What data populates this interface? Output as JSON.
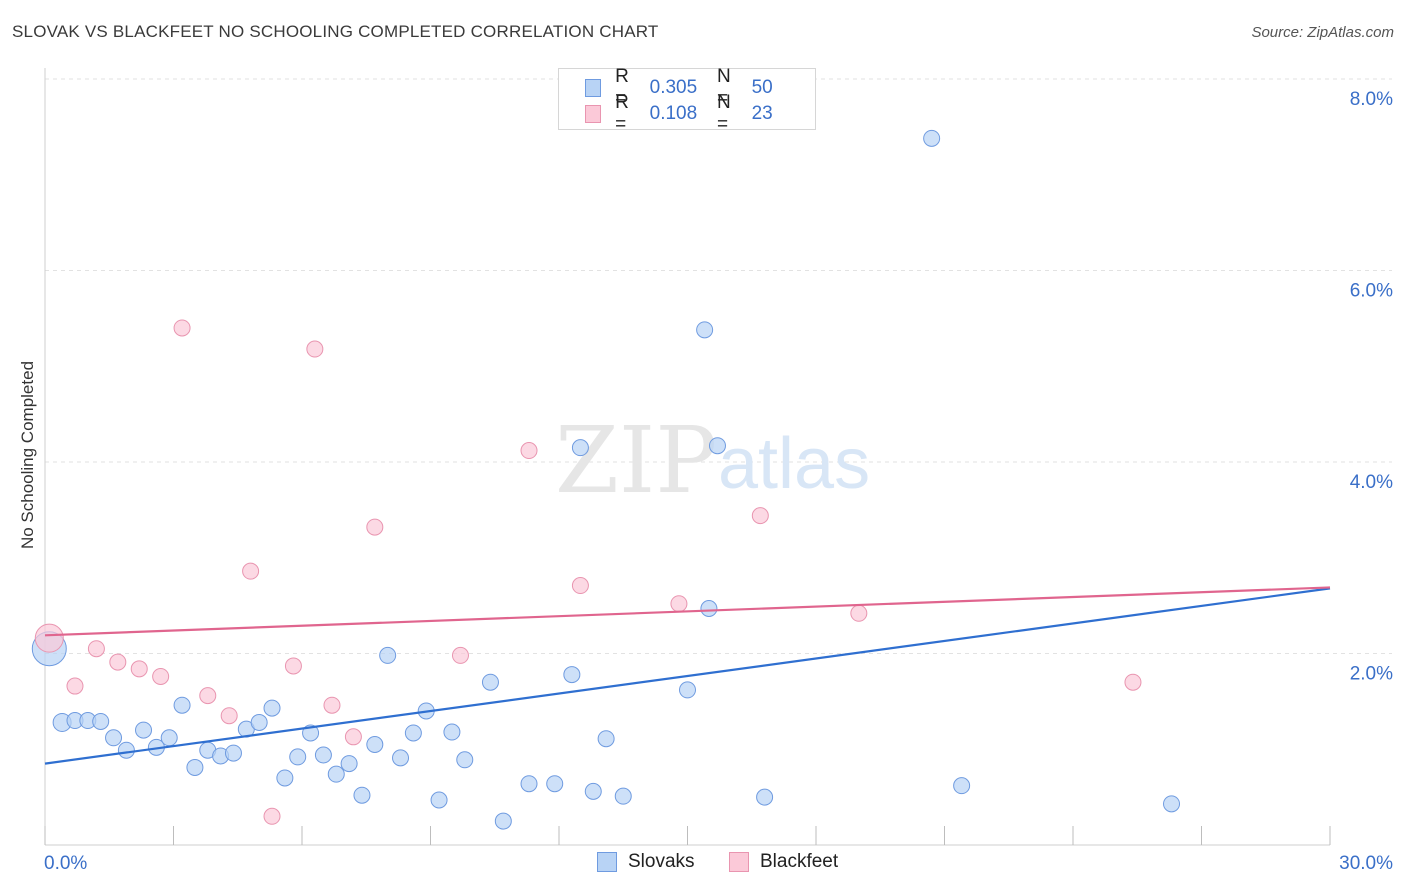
{
  "title": "SLOVAK VS BLACKFEET NO SCHOOLING COMPLETED CORRELATION CHART",
  "source": "Source: ZipAtlas.com",
  "watermark": {
    "zip": "ZIP",
    "atlas": "atlas"
  },
  "legend_top": [
    {
      "r_label": "R =",
      "r_value": "0.305",
      "n_label": "N =",
      "n_value": "50",
      "color": "#b8d3f5",
      "border": "#6f9be0"
    },
    {
      "r_label": "R =",
      "r_value": "0.108",
      "n_label": "N =",
      "n_value": "23",
      "color": "#fbc9d8",
      "border": "#e995b0"
    }
  ],
  "legend_bottom": [
    {
      "label": "Slovaks",
      "color": "#b8d3f5",
      "border": "#6f9be0"
    },
    {
      "label": "Blackfeet",
      "color": "#fbc9d8",
      "border": "#e995b0"
    }
  ],
  "chart_data": {
    "type": "scatter",
    "title": "SLOVAK VS BLACKFEET NO SCHOOLING COMPLETED CORRELATION CHART",
    "xlabel": "",
    "ylabel": "No Schooling Completed",
    "xlim": [
      0,
      30
    ],
    "ylim": [
      0,
      8
    ],
    "x_tick_labels": [
      "0.0%",
      "30.0%"
    ],
    "y_ticks": [
      2,
      4,
      6,
      8
    ],
    "y_tick_labels": [
      "2.0%",
      "4.0%",
      "6.0%",
      "8.0%"
    ],
    "grid": true,
    "series": [
      {
        "name": "Slovaks",
        "color": "#b8d3f5",
        "edge": "#6f9be0",
        "line_color": "#2f6fd0",
        "trend": {
          "x": [
            0,
            30
          ],
          "y": [
            0.85,
            2.68
          ]
        },
        "points": [
          {
            "x": 0.1,
            "y": 2.05,
            "s": 17
          },
          {
            "x": 0.4,
            "y": 1.28,
            "s": 9
          },
          {
            "x": 0.7,
            "y": 1.3,
            "s": 8
          },
          {
            "x": 1.0,
            "y": 1.3,
            "s": 8
          },
          {
            "x": 1.3,
            "y": 1.29,
            "s": 8
          },
          {
            "x": 1.6,
            "y": 1.12,
            "s": 8
          },
          {
            "x": 1.9,
            "y": 0.99,
            "s": 8
          },
          {
            "x": 2.3,
            "y": 1.2,
            "s": 8
          },
          {
            "x": 2.6,
            "y": 1.02,
            "s": 8
          },
          {
            "x": 2.9,
            "y": 1.12,
            "s": 8
          },
          {
            "x": 3.2,
            "y": 1.46,
            "s": 8
          },
          {
            "x": 3.5,
            "y": 0.81,
            "s": 8
          },
          {
            "x": 3.8,
            "y": 0.99,
            "s": 8
          },
          {
            "x": 4.1,
            "y": 0.93,
            "s": 8
          },
          {
            "x": 4.4,
            "y": 0.96,
            "s": 8
          },
          {
            "x": 4.7,
            "y": 1.21,
            "s": 8
          },
          {
            "x": 5.0,
            "y": 1.28,
            "s": 8
          },
          {
            "x": 5.3,
            "y": 1.43,
            "s": 8
          },
          {
            "x": 5.6,
            "y": 0.7,
            "s": 8
          },
          {
            "x": 5.9,
            "y": 0.92,
            "s": 8
          },
          {
            "x": 6.2,
            "y": 1.17,
            "s": 8
          },
          {
            "x": 6.5,
            "y": 0.94,
            "s": 8
          },
          {
            "x": 6.8,
            "y": 0.74,
            "s": 8
          },
          {
            "x": 7.1,
            "y": 0.85,
            "s": 8
          },
          {
            "x": 7.4,
            "y": 0.52,
            "s": 8
          },
          {
            "x": 7.7,
            "y": 1.05,
            "s": 8
          },
          {
            "x": 8.0,
            "y": 1.98,
            "s": 8
          },
          {
            "x": 8.3,
            "y": 0.91,
            "s": 8
          },
          {
            "x": 8.6,
            "y": 1.17,
            "s": 8
          },
          {
            "x": 8.9,
            "y": 1.4,
            "s": 8
          },
          {
            "x": 9.2,
            "y": 0.47,
            "s": 8
          },
          {
            "x": 9.5,
            "y": 1.18,
            "s": 8
          },
          {
            "x": 9.8,
            "y": 0.89,
            "s": 8
          },
          {
            "x": 10.4,
            "y": 1.7,
            "s": 8
          },
          {
            "x": 10.7,
            "y": 0.25,
            "s": 8
          },
          {
            "x": 11.3,
            "y": 0.64,
            "s": 8
          },
          {
            "x": 11.9,
            "y": 0.64,
            "s": 8
          },
          {
            "x": 12.3,
            "y": 1.78,
            "s": 8
          },
          {
            "x": 12.5,
            "y": 4.15,
            "s": 8
          },
          {
            "x": 12.8,
            "y": 0.56,
            "s": 8
          },
          {
            "x": 13.1,
            "y": 1.11,
            "s": 8
          },
          {
            "x": 13.5,
            "y": 0.51,
            "s": 8
          },
          {
            "x": 15.0,
            "y": 1.62,
            "s": 8
          },
          {
            "x": 15.4,
            "y": 5.38,
            "s": 8
          },
          {
            "x": 15.5,
            "y": 2.47,
            "s": 8
          },
          {
            "x": 15.7,
            "y": 4.17,
            "s": 8
          },
          {
            "x": 16.8,
            "y": 0.5,
            "s": 8
          },
          {
            "x": 20.7,
            "y": 7.38,
            "s": 8
          },
          {
            "x": 21.4,
            "y": 0.62,
            "s": 8
          },
          {
            "x": 26.3,
            "y": 0.43,
            "s": 8
          }
        ]
      },
      {
        "name": "Blackfeet",
        "color": "#fbc9d8",
        "edge": "#e995b0",
        "line_color": "#e0658e",
        "trend": {
          "x": [
            0,
            30
          ],
          "y": [
            2.19,
            2.69
          ]
        },
        "points": [
          {
            "x": 0.1,
            "y": 2.16,
            "s": 14
          },
          {
            "x": 0.7,
            "y": 1.66,
            "s": 8
          },
          {
            "x": 1.2,
            "y": 2.05,
            "s": 8
          },
          {
            "x": 1.7,
            "y": 1.91,
            "s": 8
          },
          {
            "x": 2.2,
            "y": 1.84,
            "s": 8
          },
          {
            "x": 2.7,
            "y": 1.76,
            "s": 8
          },
          {
            "x": 3.2,
            "y": 5.4,
            "s": 8
          },
          {
            "x": 3.8,
            "y": 1.56,
            "s": 8
          },
          {
            "x": 4.3,
            "y": 1.35,
            "s": 8
          },
          {
            "x": 4.8,
            "y": 2.86,
            "s": 8
          },
          {
            "x": 5.3,
            "y": 0.3,
            "s": 8
          },
          {
            "x": 5.8,
            "y": 1.87,
            "s": 8
          },
          {
            "x": 6.3,
            "y": 5.18,
            "s": 8
          },
          {
            "x": 6.7,
            "y": 1.46,
            "s": 8
          },
          {
            "x": 7.2,
            "y": 1.13,
            "s": 8
          },
          {
            "x": 7.7,
            "y": 3.32,
            "s": 8
          },
          {
            "x": 9.7,
            "y": 1.98,
            "s": 8
          },
          {
            "x": 11.3,
            "y": 4.12,
            "s": 8
          },
          {
            "x": 12.5,
            "y": 2.71,
            "s": 8
          },
          {
            "x": 14.8,
            "y": 2.52,
            "s": 8
          },
          {
            "x": 16.7,
            "y": 3.44,
            "s": 8
          },
          {
            "x": 19.0,
            "y": 2.42,
            "s": 8
          },
          {
            "x": 25.4,
            "y": 1.7,
            "s": 8
          }
        ]
      }
    ]
  }
}
